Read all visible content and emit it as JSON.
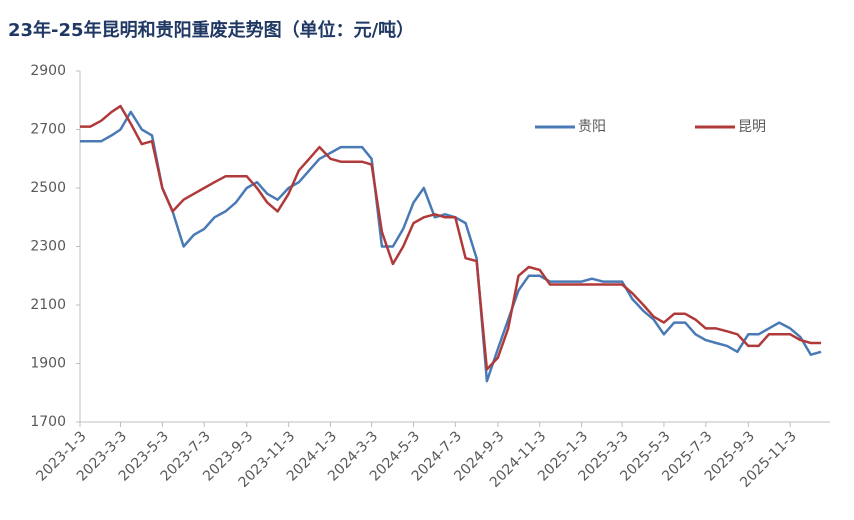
{
  "chart_data": {
    "type": "line",
    "title": "23年-25年昆明和贵阳重废走势图（单位：元/吨）",
    "x": [
      "2023-1-3",
      "2023-1-18",
      "2023-2-3",
      "2023-2-18",
      "2023-3-3",
      "2023-3-18",
      "2023-4-3",
      "2023-4-18",
      "2023-5-3",
      "2023-5-18",
      "2023-6-3",
      "2023-6-18",
      "2023-7-3",
      "2023-7-18",
      "2023-8-3",
      "2023-8-18",
      "2023-9-3",
      "2023-9-18",
      "2023-10-3",
      "2023-10-18",
      "2023-11-3",
      "2023-11-18",
      "2023-12-3",
      "2023-12-18",
      "2024-1-3",
      "2024-1-18",
      "2024-2-3",
      "2024-2-18",
      "2024-3-3",
      "2024-3-18",
      "2024-4-3",
      "2024-4-18",
      "2024-5-3",
      "2024-5-18",
      "2024-6-3",
      "2024-6-18",
      "2024-7-3",
      "2024-7-18",
      "2024-8-3",
      "2024-8-18",
      "2024-9-3",
      "2024-9-18",
      "2024-10-3",
      "2024-10-18",
      "2024-11-3",
      "2024-11-18",
      "2024-12-3",
      "2024-12-18",
      "2025-1-3",
      "2025-1-18",
      "2025-2-3",
      "2025-2-18",
      "2025-3-3",
      "2025-3-18",
      "2025-4-3",
      "2025-4-18",
      "2025-5-3",
      "2025-5-18",
      "2025-6-3",
      "2025-6-18",
      "2025-7-3",
      "2025-7-18",
      "2025-8-3",
      "2025-8-18",
      "2025-9-3",
      "2025-9-18",
      "2025-10-3",
      "2025-10-18",
      "2025-11-3",
      "2025-11-18",
      "2025-12-3",
      "2025-12-18"
    ],
    "series": [
      {
        "name": "贵阳",
        "color": "#4a7ab5",
        "values": [
          2660,
          2660,
          2660,
          2680,
          2700,
          2760,
          2700,
          2680,
          2500,
          2420,
          2300,
          2340,
          2360,
          2400,
          2420,
          2450,
          2500,
          2520,
          2480,
          2460,
          2500,
          2520,
          2560,
          2600,
          2620,
          2640,
          2640,
          2640,
          2600,
          2300,
          2300,
          2360,
          2450,
          2500,
          2400,
          2410,
          2400,
          2380,
          2260,
          1840,
          1950,
          2050,
          2150,
          2200,
          2200,
          2180,
          2180,
          2180,
          2180,
          2190,
          2180,
          2180,
          2180,
          2120,
          2080,
          2050,
          2000,
          2040,
          2040,
          2000,
          1980,
          1970,
          1960,
          1940,
          2000,
          2000,
          2020,
          2040,
          2020,
          1990,
          1930,
          1940
        ]
      },
      {
        "name": "昆明",
        "color": "#b03a3a",
        "values": [
          2710,
          2710,
          2730,
          2760,
          2780,
          2720,
          2650,
          2660,
          2500,
          2420,
          2460,
          2480,
          2500,
          2520,
          2540,
          2540,
          2540,
          2500,
          2450,
          2420,
          2480,
          2560,
          2600,
          2640,
          2600,
          2590,
          2590,
          2590,
          2580,
          2350,
          2240,
          2300,
          2380,
          2400,
          2410,
          2400,
          2400,
          2260,
          2250,
          1880,
          1920,
          2020,
          2200,
          2230,
          2220,
          2170,
          2170,
          2170,
          2170,
          2170,
          2170,
          2170,
          2170,
          2140,
          2100,
          2060,
          2040,
          2070,
          2070,
          2050,
          2020,
          2020,
          2010,
          2000,
          1960,
          1960,
          2000,
          2000,
          2000,
          1980,
          1970,
          1970
        ]
      }
    ],
    "xlim": [
      "2023-1-3",
      "2025-12-31"
    ],
    "xticks": [
      "2023-1-3",
      "2023-3-3",
      "2023-5-3",
      "2023-7-3",
      "2023-9-3",
      "2023-11-3",
      "2024-1-3",
      "2024-3-3",
      "2024-5-3",
      "2024-7-3",
      "2024-9-3",
      "2024-11-3",
      "2025-1-3",
      "2025-3-3",
      "2025-5-3",
      "2025-7-3",
      "2025-9-3",
      "2025-11-3"
    ],
    "ylim": [
      1700,
      2900
    ],
    "yticks": [
      1700,
      1900,
      2100,
      2300,
      2500,
      2700,
      2900
    ],
    "legend": "top-right"
  }
}
